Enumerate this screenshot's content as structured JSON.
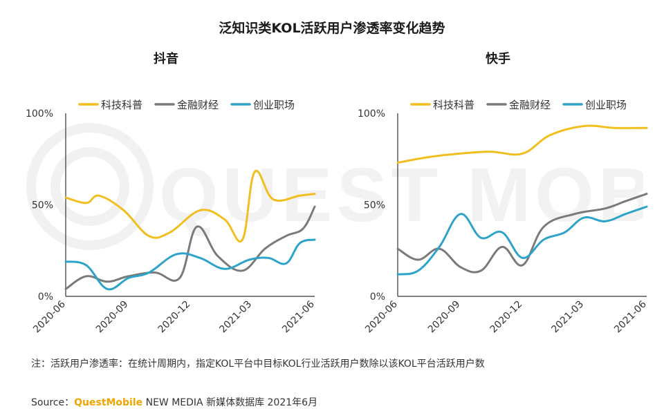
{
  "title": "泛知识类KOL活跃用户渗透率变化趋势",
  "colors": {
    "科技科普": "#f2be1e",
    "金融财经": "#7a7a7a",
    "创业职场": "#2ea3c9",
    "axis": "#333333",
    "brand": "#f0a500"
  },
  "chart_data": [
    {
      "type": "line",
      "title": "抖音",
      "legend_position": "top",
      "x_ticks": [
        "2020-06",
        "2020-09",
        "2020-12",
        "2021-03",
        "2021-06"
      ],
      "x_range": [
        "2020-06",
        "2021-06"
      ],
      "y_ticks": [
        "0%",
        "50%",
        "100%"
      ],
      "ylim": [
        0,
        100
      ],
      "grid": false,
      "series": [
        {
          "name": "科技科普",
          "points": [
            [
              "2020-06-01",
              54
            ],
            [
              "2020-07-01",
              51
            ],
            [
              "2020-07-20",
              55
            ],
            [
              "2020-08-25",
              47
            ],
            [
              "2020-10-01",
              33
            ],
            [
              "2020-11-01",
              35
            ],
            [
              "2020-12-15",
              47
            ],
            [
              "2021-01-20",
              42
            ],
            [
              "2021-02-15",
              31
            ],
            [
              "2021-03-05",
              68
            ],
            [
              "2021-04-01",
              53
            ],
            [
              "2021-05-10",
              55
            ],
            [
              "2021-06-01",
              56
            ]
          ]
        },
        {
          "name": "金融财经",
          "points": [
            [
              "2020-06-01",
              4
            ],
            [
              "2020-07-01",
              11
            ],
            [
              "2020-08-01",
              8
            ],
            [
              "2020-09-01",
              11
            ],
            [
              "2020-10-10",
              13
            ],
            [
              "2020-11-15",
              10
            ],
            [
              "2020-12-10",
              38
            ],
            [
              "2021-01-10",
              22
            ],
            [
              "2021-02-15",
              14
            ],
            [
              "2021-03-20",
              26
            ],
            [
              "2021-04-20",
              33
            ],
            [
              "2021-05-15",
              37
            ],
            [
              "2021-06-01",
              49
            ]
          ]
        },
        {
          "name": "创业职场",
          "points": [
            [
              "2020-06-01",
              19
            ],
            [
              "2020-07-01",
              17
            ],
            [
              "2020-08-01",
              4
            ],
            [
              "2020-09-01",
              10
            ],
            [
              "2020-10-01",
              13
            ],
            [
              "2020-11-10",
              23
            ],
            [
              "2020-12-15",
              21
            ],
            [
              "2021-01-20",
              15
            ],
            [
              "2021-02-25",
              20
            ],
            [
              "2021-03-25",
              21
            ],
            [
              "2021-04-20",
              18
            ],
            [
              "2021-05-10",
              29
            ],
            [
              "2021-06-01",
              31
            ]
          ]
        }
      ]
    },
    {
      "type": "line",
      "title": "快手",
      "legend_position": "top",
      "x_ticks": [
        "2020-06",
        "2020-09",
        "2020-12",
        "2021-03",
        "2021-06"
      ],
      "x_range": [
        "2020-06",
        "2021-06"
      ],
      "y_ticks": [
        "0%",
        "50%",
        "100%"
      ],
      "ylim": [
        0,
        100
      ],
      "grid": false,
      "series": [
        {
          "name": "科技科普",
          "points": [
            [
              "2020-06-01",
              73
            ],
            [
              "2020-07-15",
              76
            ],
            [
              "2020-09-01",
              78
            ],
            [
              "2020-10-15",
              79
            ],
            [
              "2020-12-01",
              78
            ],
            [
              "2021-01-10",
              88
            ],
            [
              "2021-03-01",
              93
            ],
            [
              "2021-04-15",
              92
            ],
            [
              "2021-06-01",
              92
            ]
          ]
        },
        {
          "name": "金融财经",
          "points": [
            [
              "2020-06-01",
              26
            ],
            [
              "2020-07-01",
              20
            ],
            [
              "2020-08-01",
              26
            ],
            [
              "2020-09-01",
              16
            ],
            [
              "2020-10-01",
              14
            ],
            [
              "2020-11-01",
              27
            ],
            [
              "2020-12-01",
              17
            ],
            [
              "2021-01-01",
              38
            ],
            [
              "2021-02-15",
              45
            ],
            [
              "2021-04-01",
              48
            ],
            [
              "2021-05-01",
              52
            ],
            [
              "2021-06-01",
              56
            ]
          ]
        },
        {
          "name": "创业职场",
          "points": [
            [
              "2020-06-01",
              12
            ],
            [
              "2020-07-01",
              14
            ],
            [
              "2020-08-01",
              27
            ],
            [
              "2020-09-01",
              45
            ],
            [
              "2020-10-01",
              32
            ],
            [
              "2020-11-01",
              35
            ],
            [
              "2020-12-01",
              21
            ],
            [
              "2021-01-01",
              31
            ],
            [
              "2021-02-01",
              35
            ],
            [
              "2021-03-01",
              43
            ],
            [
              "2021-04-01",
              41
            ],
            [
              "2021-05-01",
              45
            ],
            [
              "2021-06-01",
              49
            ]
          ]
        }
      ]
    }
  ],
  "note": "注：活跃用户渗透率：在统计周期内，指定KOL平台中目标KOL行业活跃用户数除以该KOL平台活跃用户数",
  "source": {
    "label": "Source：",
    "brand": "QuestMobile",
    "text": " NEW MEDIA 新媒体数据库 2021年6月"
  },
  "watermark": "QUEST MOBILE"
}
